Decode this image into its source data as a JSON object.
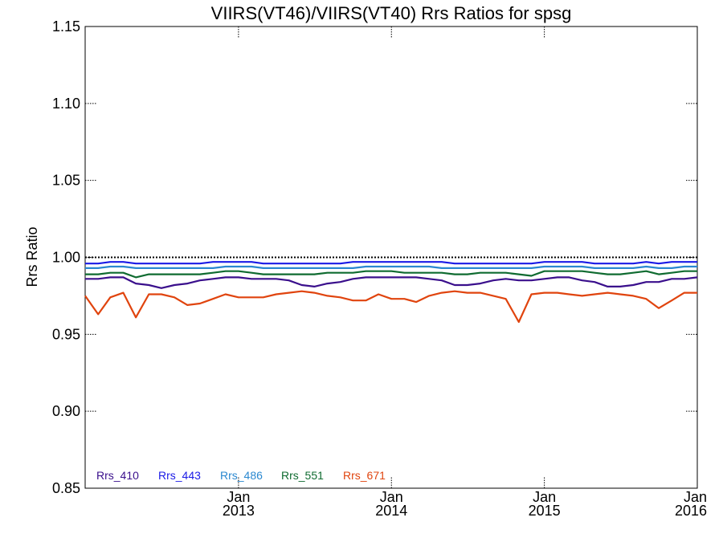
{
  "chart_data": {
    "type": "line",
    "title": "VIIRS(VT46)/VIIRS(VT40)  Rrs Ratios for spsg",
    "xlabel": "",
    "ylabel": "Rrs Ratio",
    "ylim": [
      0.85,
      1.15
    ],
    "xlim": [
      "2012-01-01",
      "2016-01-01"
    ],
    "yticks": [
      "0.85",
      "0.90",
      "0.95",
      "1.00",
      "1.05",
      "1.10",
      "1.15"
    ],
    "xticks": [
      {
        "month": "Jan",
        "year": "2013",
        "date": "2013-01-01"
      },
      {
        "month": "Jan",
        "year": "2014",
        "date": "2014-01-01"
      },
      {
        "month": "Jan",
        "year": "2015",
        "date": "2015-01-01"
      },
      {
        "month": "Jan",
        "year": "2016",
        "date": "2016-01-01"
      }
    ],
    "reference_line": 1.0,
    "legend_position": "bottom-left",
    "x": [
      "2012-01-01",
      "2012-02-01",
      "2012-03-01",
      "2012-04-01",
      "2012-05-01",
      "2012-06-01",
      "2012-07-01",
      "2012-08-01",
      "2012-09-01",
      "2012-10-01",
      "2012-11-01",
      "2012-12-01",
      "2013-01-01",
      "2013-02-01",
      "2013-03-01",
      "2013-04-01",
      "2013-05-01",
      "2013-06-01",
      "2013-07-01",
      "2013-08-01",
      "2013-09-01",
      "2013-10-01",
      "2013-11-01",
      "2013-12-01",
      "2014-01-01",
      "2014-02-01",
      "2014-03-01",
      "2014-04-01",
      "2014-05-01",
      "2014-06-01",
      "2014-07-01",
      "2014-08-01",
      "2014-09-01",
      "2014-10-01",
      "2014-11-01",
      "2014-12-01",
      "2015-01-01",
      "2015-02-01",
      "2015-03-01",
      "2015-04-01",
      "2015-05-01",
      "2015-06-01",
      "2015-07-01",
      "2015-08-01",
      "2015-09-01",
      "2015-10-01",
      "2015-11-01",
      "2015-12-01",
      "2016-01-01"
    ],
    "series": [
      {
        "name": "Rrs_410",
        "color": "#3a0f8c",
        "values": [
          0.986,
          0.986,
          0.987,
          0.987,
          0.983,
          0.982,
          0.98,
          0.982,
          0.983,
          0.985,
          0.986,
          0.987,
          0.987,
          0.986,
          0.986,
          0.986,
          0.985,
          0.982,
          0.981,
          0.983,
          0.984,
          0.986,
          0.987,
          0.987,
          0.987,
          0.987,
          0.987,
          0.986,
          0.985,
          0.982,
          0.982,
          0.983,
          0.985,
          0.986,
          0.985,
          0.985,
          0.986,
          0.987,
          0.987,
          0.985,
          0.984,
          0.981,
          0.981,
          0.982,
          0.984,
          0.984,
          0.986,
          0.986,
          0.987
        ]
      },
      {
        "name": "Rrs_443",
        "color": "#1a1ae6",
        "values": [
          0.996,
          0.996,
          0.997,
          0.997,
          0.996,
          0.996,
          0.996,
          0.996,
          0.996,
          0.996,
          0.997,
          0.997,
          0.997,
          0.997,
          0.996,
          0.996,
          0.996,
          0.996,
          0.996,
          0.996,
          0.996,
          0.997,
          0.997,
          0.997,
          0.997,
          0.997,
          0.997,
          0.997,
          0.997,
          0.996,
          0.996,
          0.996,
          0.996,
          0.996,
          0.996,
          0.996,
          0.997,
          0.997,
          0.997,
          0.997,
          0.996,
          0.996,
          0.996,
          0.996,
          0.997,
          0.996,
          0.997,
          0.997,
          0.997
        ]
      },
      {
        "name": "Rrs_486",
        "color": "#2a88d0",
        "values": [
          0.993,
          0.993,
          0.994,
          0.994,
          0.993,
          0.993,
          0.993,
          0.993,
          0.993,
          0.993,
          0.993,
          0.994,
          0.994,
          0.994,
          0.993,
          0.993,
          0.993,
          0.993,
          0.993,
          0.993,
          0.993,
          0.993,
          0.994,
          0.994,
          0.994,
          0.994,
          0.994,
          0.994,
          0.993,
          0.993,
          0.993,
          0.993,
          0.993,
          0.993,
          0.993,
          0.993,
          0.994,
          0.994,
          0.994,
          0.994,
          0.993,
          0.993,
          0.993,
          0.993,
          0.994,
          0.993,
          0.993,
          0.994,
          0.994
        ]
      },
      {
        "name": "Rrs_551",
        "color": "#0f6b30",
        "values": [
          0.989,
          0.989,
          0.99,
          0.99,
          0.987,
          0.989,
          0.989,
          0.989,
          0.989,
          0.989,
          0.99,
          0.991,
          0.991,
          0.99,
          0.989,
          0.989,
          0.989,
          0.989,
          0.989,
          0.99,
          0.99,
          0.99,
          0.991,
          0.991,
          0.991,
          0.99,
          0.99,
          0.99,
          0.99,
          0.989,
          0.989,
          0.99,
          0.99,
          0.99,
          0.989,
          0.988,
          0.991,
          0.991,
          0.991,
          0.991,
          0.99,
          0.989,
          0.989,
          0.99,
          0.991,
          0.989,
          0.99,
          0.991,
          0.991
        ]
      },
      {
        "name": "Rrs_671",
        "color": "#e0440e",
        "values": [
          0.975,
          0.963,
          0.974,
          0.977,
          0.961,
          0.976,
          0.976,
          0.974,
          0.969,
          0.97,
          0.973,
          0.976,
          0.974,
          0.974,
          0.974,
          0.976,
          0.977,
          0.978,
          0.977,
          0.975,
          0.974,
          0.972,
          0.972,
          0.976,
          0.973,
          0.973,
          0.971,
          0.975,
          0.977,
          0.978,
          0.977,
          0.977,
          0.975,
          0.973,
          0.958,
          0.976,
          0.977,
          0.977,
          0.976,
          0.975,
          0.976,
          0.977,
          0.976,
          0.975,
          0.973,
          0.967,
          0.972,
          0.977,
          0.977
        ]
      }
    ]
  }
}
